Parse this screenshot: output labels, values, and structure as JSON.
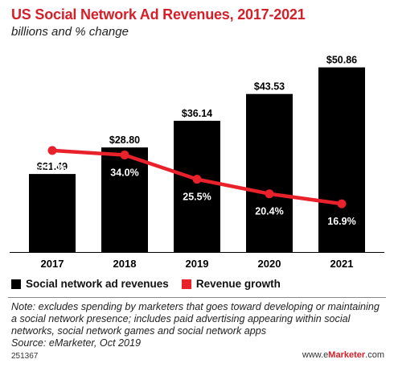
{
  "header": {
    "title": "US Social Network Ad Revenues, 2017-2021",
    "subtitle": "billions and % change"
  },
  "chart_data": {
    "type": "bar",
    "categories": [
      "2017",
      "2018",
      "2019",
      "2020",
      "2021"
    ],
    "series": [
      {
        "name": "Social network ad revenues",
        "type": "bar",
        "values": [
          21.49,
          28.8,
          36.14,
          43.53,
          50.86
        ],
        "labels": [
          "$21.49",
          "$28.80",
          "$36.14",
          "$43.53",
          "$50.86"
        ],
        "color": "#000000"
      },
      {
        "name": "Revenue growth",
        "type": "line",
        "values": [
          35.6,
          34.0,
          25.5,
          20.4,
          16.9
        ],
        "labels": [
          "35.6%",
          "34.0%",
          "25.5%",
          "20.4%",
          "16.9%"
        ],
        "color": "#e8212a"
      }
    ],
    "ylim": [
      0,
      55
    ],
    "growth_ylim": [
      0,
      70
    ],
    "grid": false,
    "legend": "bottom-left"
  },
  "note": "Note: excludes spending by marketers that goes toward developing or maintaining a social network presence; includes paid advertising appearing within social networks, social network games and social network apps",
  "source": "Source: eMarketer, Oct 2019",
  "footer": {
    "id": "251367",
    "site_prefix": "www.e",
    "site_accent": "Marketer",
    "site_suffix": ".com"
  },
  "colors": {
    "title": "#d4202a",
    "bar": "#000000",
    "growth_line": "#e8212a"
  }
}
